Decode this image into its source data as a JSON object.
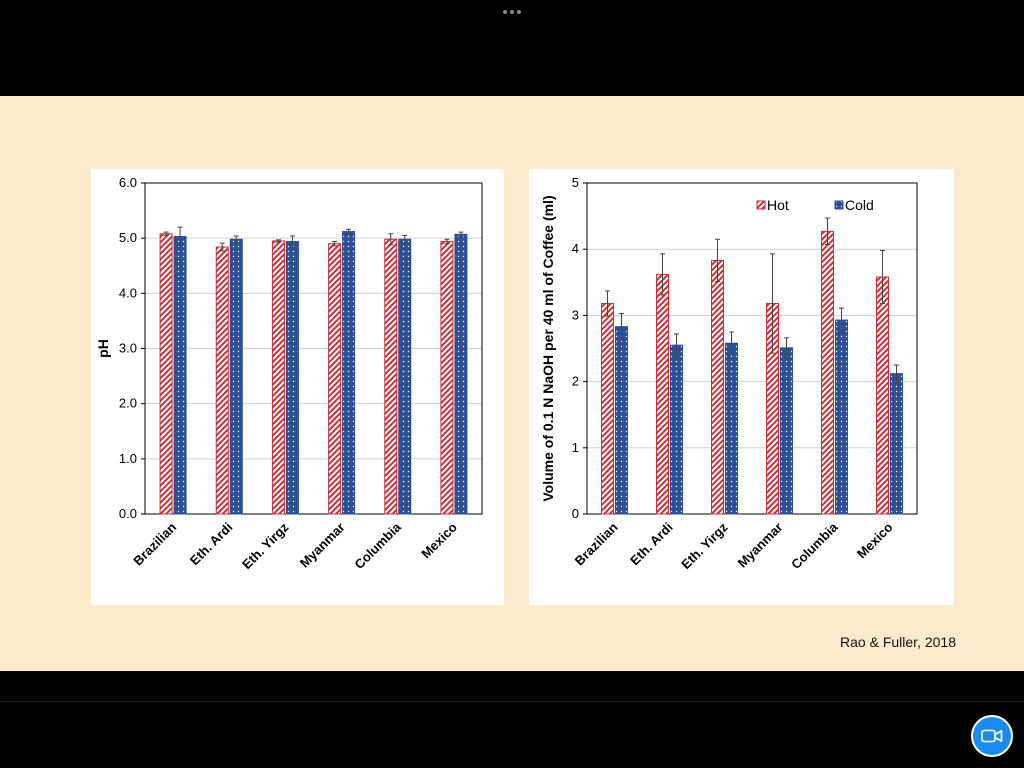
{
  "colors": {
    "hot": "#c8303a",
    "cold": "#2c4f96",
    "slide_bg": "#fde9cc"
  },
  "citation": "Rao & Fuller, 2018",
  "toolbar": {
    "handle_icon": "more-dots-icon",
    "video_icon": "video-camera-icon"
  },
  "chart_data": [
    {
      "type": "bar",
      "title": "",
      "xlabel": "",
      "ylabel": "pH",
      "ylim": [
        0,
        6
      ],
      "yticks": [
        "0.0",
        "1.0",
        "2.0",
        "3.0",
        "4.0",
        "5.0",
        "6.0"
      ],
      "grid": true,
      "legend": "none",
      "categories": [
        "Brazilian",
        "Eth. Ardi",
        "Eth. Yirgz",
        "Myanmar",
        "Columbia",
        "Mexico"
      ],
      "series": [
        {
          "name": "Hot",
          "values": [
            5.08,
            4.84,
            4.95,
            4.9,
            4.98,
            4.94
          ],
          "errors": [
            0.03,
            0.07,
            0.02,
            0.04,
            0.1,
            0.04
          ]
        },
        {
          "name": "Cold",
          "values": [
            5.03,
            4.98,
            4.94,
            5.12,
            4.98,
            5.07
          ],
          "errors": [
            0.17,
            0.06,
            0.1,
            0.04,
            0.07,
            0.04
          ]
        }
      ]
    },
    {
      "type": "bar",
      "title": "",
      "xlabel": "",
      "ylabel": "Volume of 0.1 N NaOH per 40 ml of Coffee (ml)",
      "ylim": [
        0,
        5
      ],
      "yticks": [
        "0",
        "1",
        "2",
        "3",
        "4",
        "5"
      ],
      "grid": true,
      "legend": "top-right",
      "categories": [
        "Brazilian",
        "Eth. Ardi",
        "Eth. Yirgz",
        "Myanmar",
        "Columbia",
        "Mexico"
      ],
      "series": [
        {
          "name": "Hot",
          "values": [
            3.18,
            3.62,
            3.83,
            3.18,
            4.27,
            3.58
          ],
          "errors": [
            0.19,
            0.31,
            0.32,
            0.75,
            0.2,
            0.4
          ]
        },
        {
          "name": "Cold",
          "values": [
            2.83,
            2.55,
            2.58,
            2.51,
            2.93,
            2.12
          ],
          "errors": [
            0.2,
            0.17,
            0.17,
            0.15,
            0.18,
            0.13
          ]
        }
      ]
    }
  ]
}
